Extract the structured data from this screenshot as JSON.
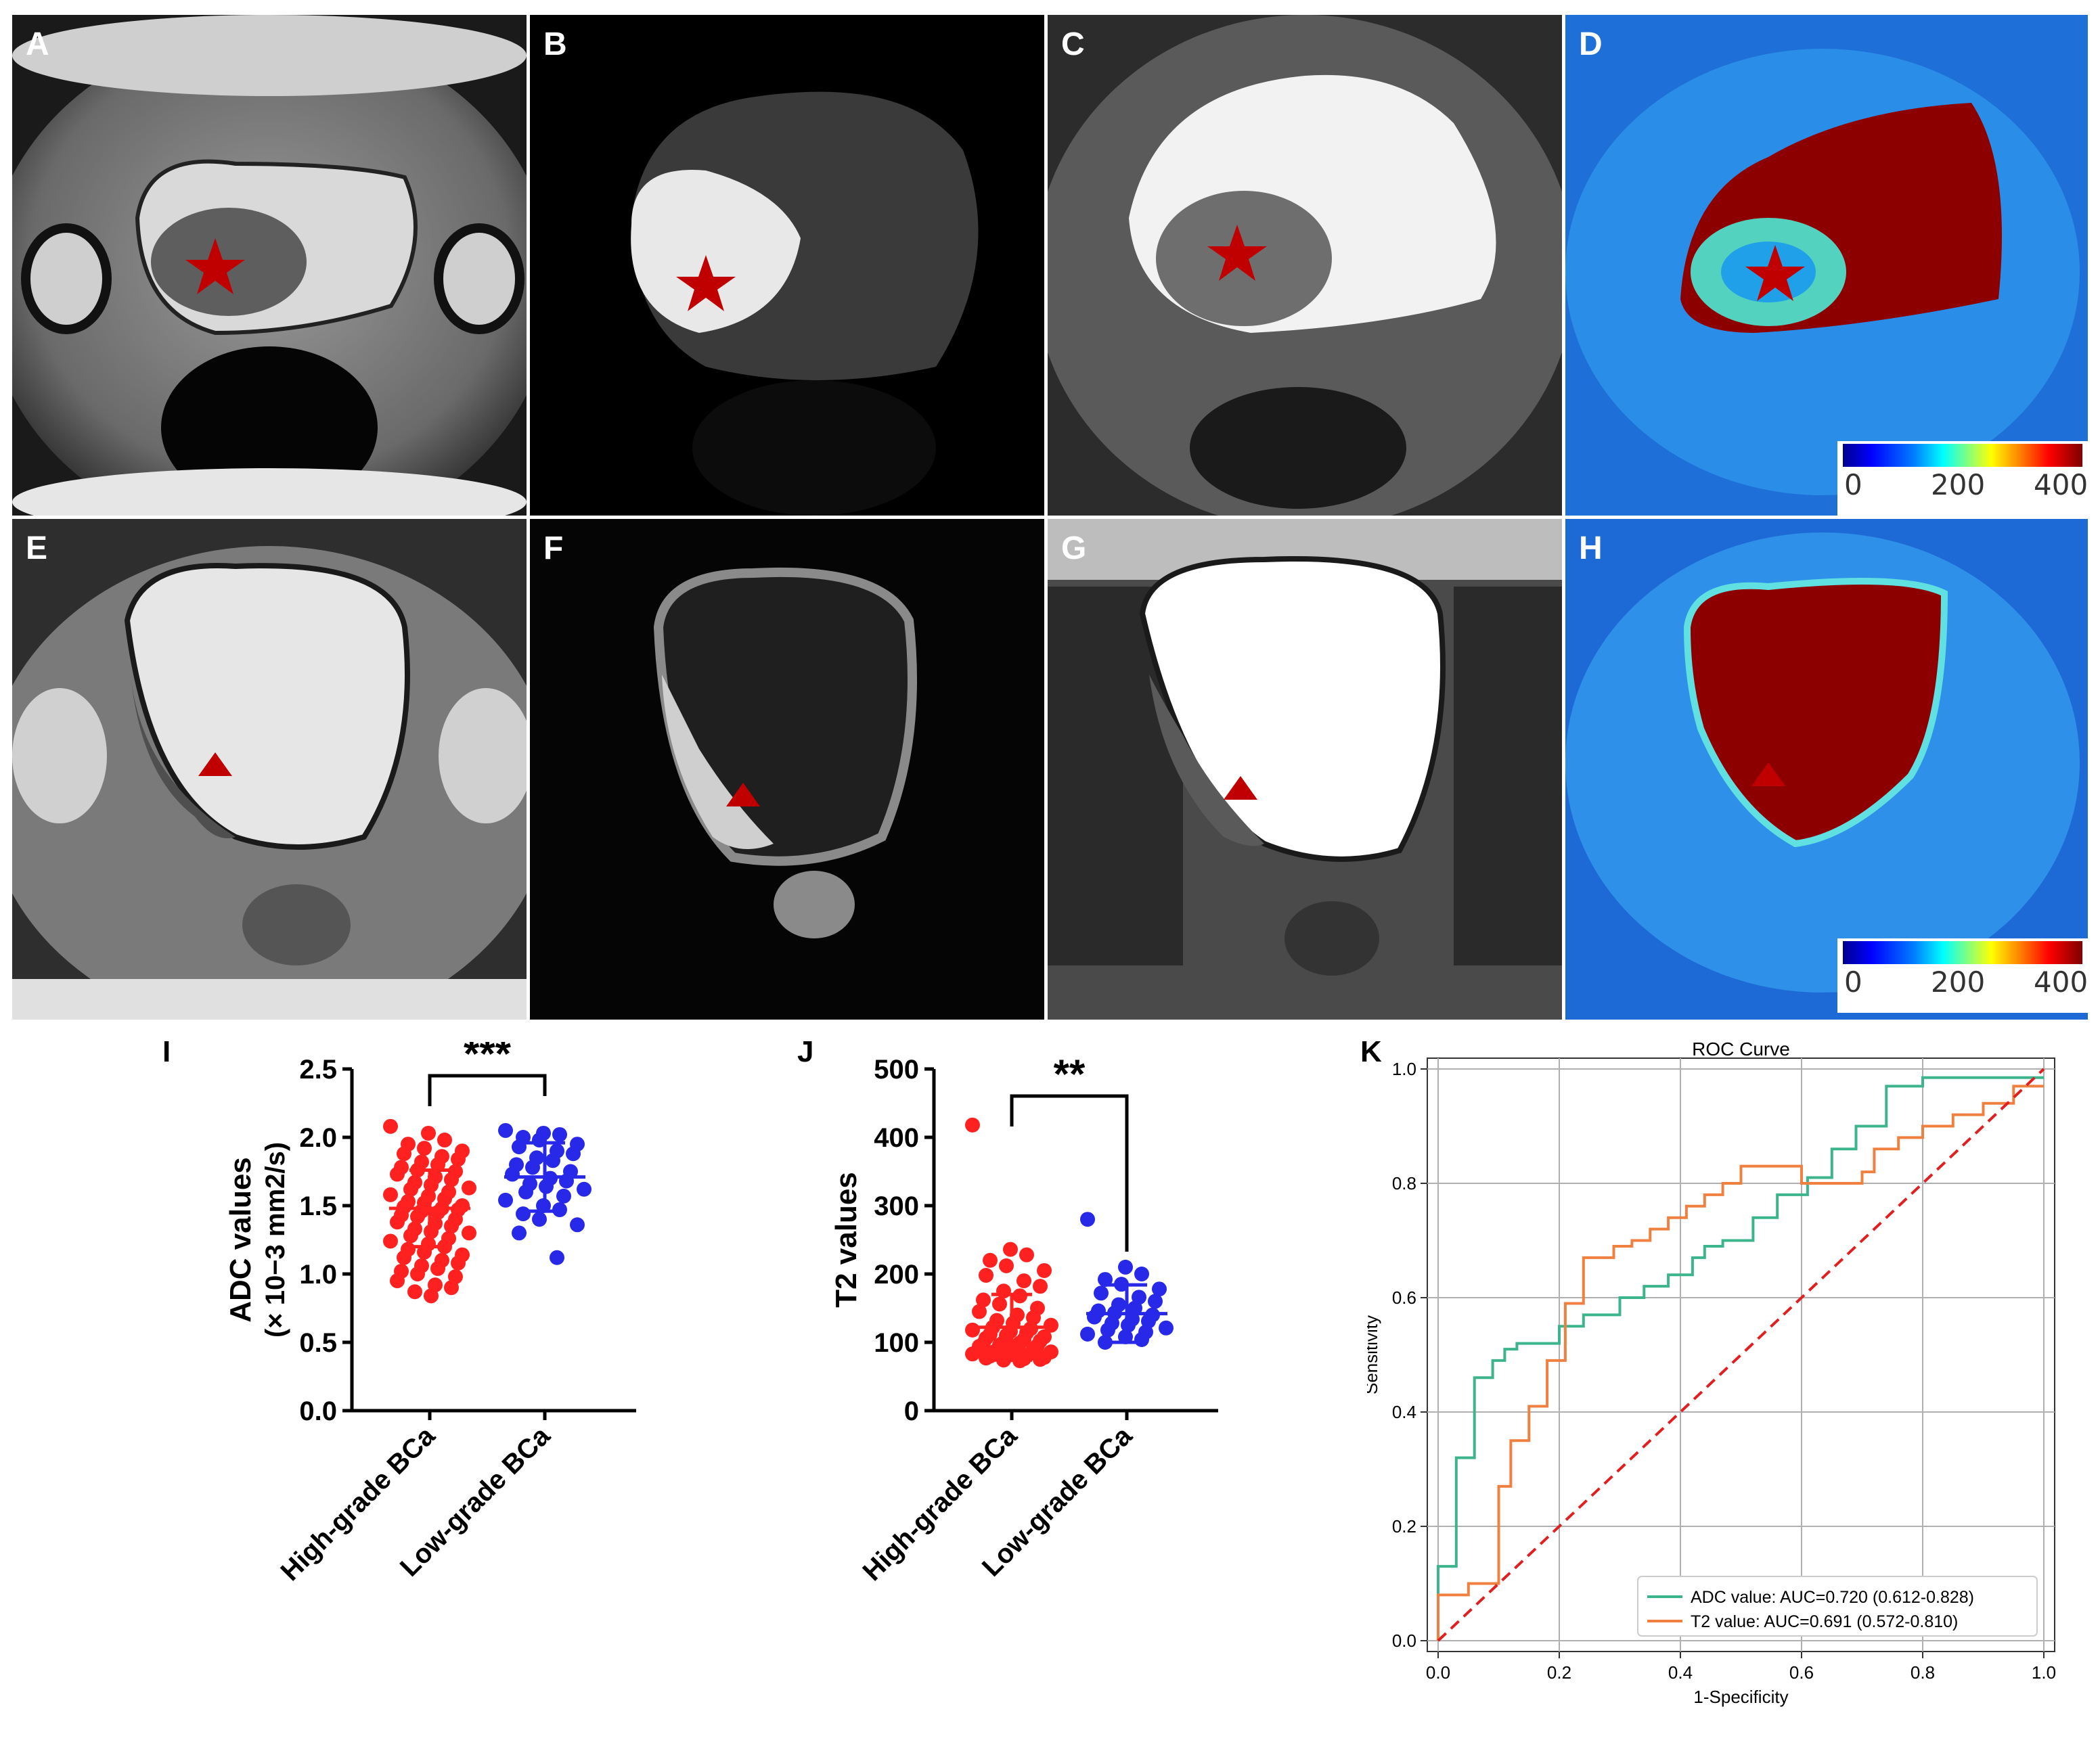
{
  "panels": {
    "A": "A",
    "B": "B",
    "C": "C",
    "D": "D",
    "E": "E",
    "F": "F",
    "G": "G",
    "H": "H",
    "I": "I",
    "J": "J",
    "K": "K"
  },
  "colorbar": {
    "ticks": [
      "0",
      "200",
      "400"
    ]
  },
  "colors": {
    "marker": "#c00000",
    "high_grade": "#ff2020",
    "low_grade": "#2828e8",
    "roc_adc": "#3cb48c",
    "roc_t2": "#f08040",
    "roc_ref": "#e02020"
  },
  "chart_data": [
    {
      "id": "I",
      "type": "scatter",
      "ylabel_line1": "ADC values",
      "ylabel_line2": "(× 10−3 mm2/s)",
      "categories": [
        "High-grade BCa",
        "Low-grade BCa"
      ],
      "ylim": [
        0,
        2.5
      ],
      "yticks": [
        "0.0",
        "0.5",
        "1.0",
        "1.5",
        "2.0",
        "2.5"
      ],
      "significance": "***",
      "series": [
        {
          "name": "High-grade BCa",
          "mean": 1.48,
          "sd": 0.28,
          "values": [
            2.08,
            2.03,
            1.98,
            1.95,
            1.92,
            1.9,
            1.88,
            1.86,
            1.84,
            1.82,
            1.8,
            1.78,
            1.76,
            1.75,
            1.73,
            1.71,
            1.69,
            1.67,
            1.65,
            1.63,
            1.62,
            1.6,
            1.58,
            1.57,
            1.55,
            1.53,
            1.52,
            1.5,
            1.49,
            1.48,
            1.47,
            1.46,
            1.45,
            1.43,
            1.42,
            1.4,
            1.38,
            1.37,
            1.35,
            1.33,
            1.31,
            1.3,
            1.28,
            1.26,
            1.24,
            1.22,
            1.2,
            1.18,
            1.16,
            1.14,
            1.12,
            1.1,
            1.08,
            1.06,
            1.04,
            1.02,
            1.0,
            0.98,
            0.95,
            0.92,
            0.9,
            0.87,
            0.84
          ]
        },
        {
          "name": "Low-grade BCa",
          "mean": 1.71,
          "sd": 0.25,
          "values": [
            2.05,
            2.03,
            2.02,
            2.0,
            1.98,
            1.95,
            1.93,
            1.9,
            1.88,
            1.85,
            1.83,
            1.8,
            1.78,
            1.75,
            1.73,
            1.7,
            1.68,
            1.66,
            1.64,
            1.62,
            1.6,
            1.57,
            1.54,
            1.5,
            1.47,
            1.44,
            1.4,
            1.36,
            1.3,
            1.12
          ]
        }
      ]
    },
    {
      "id": "J",
      "type": "scatter",
      "ylabel": "T2 values",
      "categories": [
        "High-grade BCa",
        "Low-grade BCa"
      ],
      "ylim": [
        0,
        500
      ],
      "yticks": [
        "0",
        "100",
        "200",
        "300",
        "400",
        "500"
      ],
      "significance": "**",
      "series": [
        {
          "name": "High-grade BCa",
          "mean": 122,
          "sd": 48,
          "values": [
            418,
            236,
            228,
            220,
            212,
            205,
            198,
            190,
            182,
            175,
            168,
            162,
            156,
            150,
            145,
            140,
            136,
            132,
            128,
            125,
            122,
            120,
            118,
            116,
            114,
            112,
            110,
            108,
            106,
            104,
            102,
            100,
            99,
            98,
            96,
            95,
            94,
            92,
            90,
            89,
            88,
            86,
            85,
            84,
            83,
            82,
            81,
            80,
            79,
            78,
            77,
            76,
            75,
            74,
            73
          ]
        },
        {
          "name": "Low-grade BCa",
          "mean": 142,
          "sd": 42,
          "values": [
            280,
            210,
            200,
            192,
            185,
            178,
            172,
            166,
            160,
            155,
            150,
            146,
            143,
            140,
            137,
            134,
            131,
            128,
            125,
            121,
            118,
            115,
            112,
            108,
            104,
            100
          ]
        }
      ]
    },
    {
      "id": "K",
      "type": "line",
      "title": "ROC Curve",
      "xlabel": "1-Specificity",
      "ylabel": "Sensitivity",
      "xlim": [
        0,
        1
      ],
      "ylim": [
        0,
        1
      ],
      "xticks": [
        "0.0",
        "0.2",
        "0.4",
        "0.6",
        "0.8",
        "1.0"
      ],
      "yticks": [
        "0.0",
        "0.2",
        "0.4",
        "0.6",
        "0.8",
        "1.0"
      ],
      "grid": true,
      "legend": "bottom-right",
      "series": [
        {
          "name": "ADC value: AUC=0.720 (0.612-0.828)",
          "x": [
            0,
            0,
            0.03,
            0.03,
            0.06,
            0.06,
            0.09,
            0.09,
            0.11,
            0.11,
            0.13,
            0.13,
            0.2,
            0.2,
            0.24,
            0.24,
            0.3,
            0.3,
            0.34,
            0.34,
            0.38,
            0.38,
            0.42,
            0.42,
            0.44,
            0.44,
            0.47,
            0.47,
            0.52,
            0.52,
            0.56,
            0.56,
            0.61,
            0.61,
            0.65,
            0.65,
            0.69,
            0.69,
            0.74,
            0.74,
            0.8,
            0.8,
            1.0
          ],
          "y": [
            0,
            0.13,
            0.13,
            0.32,
            0.32,
            0.46,
            0.46,
            0.49,
            0.49,
            0.51,
            0.51,
            0.52,
            0.52,
            0.55,
            0.55,
            0.57,
            0.57,
            0.6,
            0.6,
            0.62,
            0.62,
            0.64,
            0.64,
            0.67,
            0.67,
            0.69,
            0.69,
            0.7,
            0.7,
            0.74,
            0.74,
            0.78,
            0.78,
            0.81,
            0.81,
            0.86,
            0.86,
            0.9,
            0.9,
            0.97,
            0.97,
            0.985,
            0.985
          ]
        },
        {
          "name": "T2 value: AUC=0.691 (0.572-0.810)",
          "x": [
            0,
            0,
            0.05,
            0.05,
            0.1,
            0.1,
            0.12,
            0.12,
            0.15,
            0.15,
            0.18,
            0.18,
            0.21,
            0.21,
            0.24,
            0.24,
            0.29,
            0.29,
            0.32,
            0.32,
            0.35,
            0.35,
            0.38,
            0.38,
            0.41,
            0.41,
            0.44,
            0.44,
            0.47,
            0.47,
            0.5,
            0.5,
            0.55,
            0.55,
            0.6,
            0.6,
            0.7,
            0.7,
            0.72,
            0.72,
            0.76,
            0.76,
            0.8,
            0.8,
            0.85,
            0.85,
            0.9,
            0.9,
            0.95,
            0.95,
            1.0
          ],
          "y": [
            0,
            0.08,
            0.08,
            0.1,
            0.1,
            0.27,
            0.27,
            0.35,
            0.35,
            0.41,
            0.41,
            0.49,
            0.49,
            0.59,
            0.59,
            0.67,
            0.67,
            0.69,
            0.69,
            0.7,
            0.7,
            0.72,
            0.72,
            0.74,
            0.74,
            0.76,
            0.76,
            0.78,
            0.78,
            0.8,
            0.8,
            0.83,
            0.83,
            0.83,
            0.83,
            0.8,
            0.8,
            0.82,
            0.82,
            0.86,
            0.86,
            0.88,
            0.88,
            0.9,
            0.9,
            0.92,
            0.92,
            0.94,
            0.94,
            0.97,
            0.97
          ]
        },
        {
          "name": "reference",
          "x": [
            0,
            1
          ],
          "y": [
            0,
            1
          ]
        }
      ]
    }
  ]
}
